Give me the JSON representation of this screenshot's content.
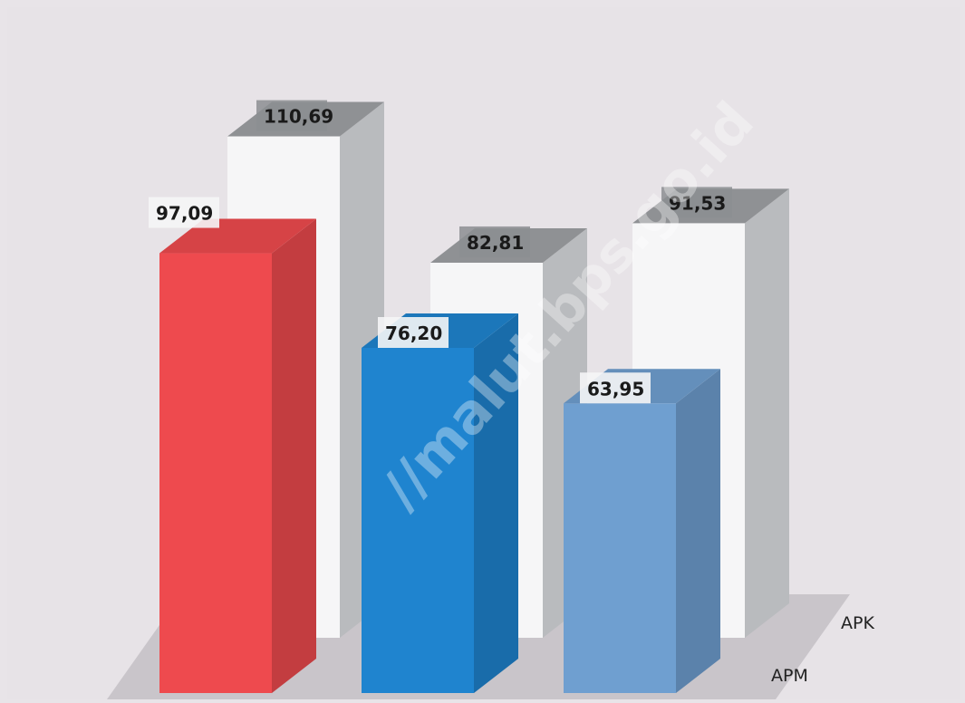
{
  "chart_data": {
    "type": "bar",
    "categories": [
      "",
      "",
      ""
    ],
    "series": [
      {
        "name": "APM",
        "values": [
          97.09,
          76.2,
          63.95
        ],
        "labels": [
          "97,09",
          "76,20",
          "63,95"
        ],
        "colors": [
          "#ee4a4e",
          "#1f84cf",
          "#6f9fd0"
        ]
      },
      {
        "name": "APK",
        "values": [
          110.69,
          82.81,
          91.53
        ],
        "labels": [
          "110,69",
          "82,81",
          "91,53"
        ],
        "colors": [
          "#f6f6f7",
          "#f6f6f7",
          "#f6f6f7"
        ]
      }
    ],
    "ylim": [
      0,
      120
    ],
    "legend": "bottom-right",
    "grid": false
  },
  "watermark": "//malut.bps.go.id"
}
